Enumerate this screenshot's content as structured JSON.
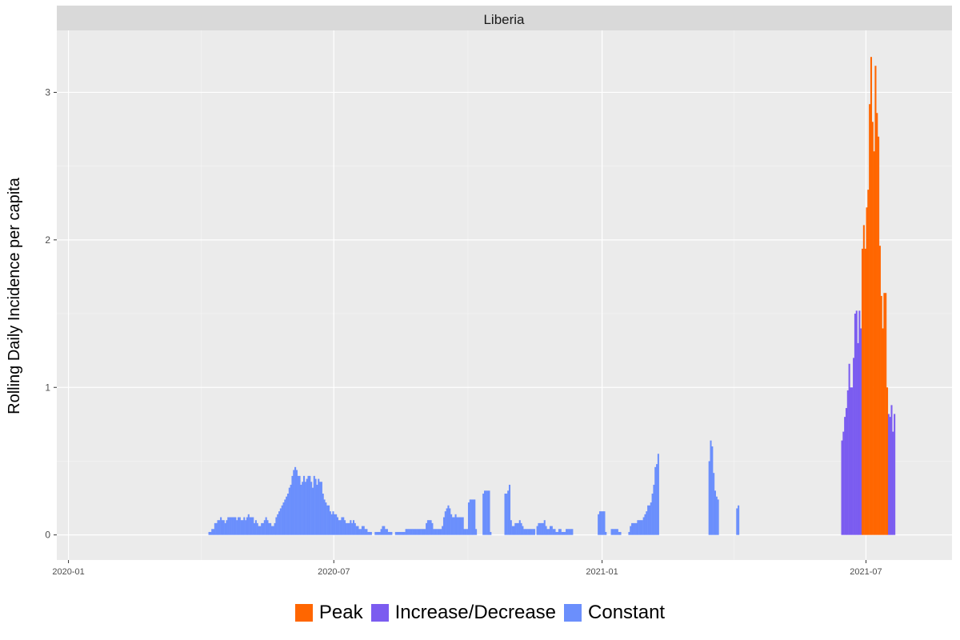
{
  "chart_data": {
    "type": "bar",
    "facet_label": "Liberia",
    "ylabel": "Rolling Daily Incidence per capita",
    "xlabel": "",
    "x_ticks": [
      "2020-01",
      "2020-07",
      "2021-01",
      "2021-07"
    ],
    "y_ticks": [
      "0",
      "1",
      "2",
      "3"
    ],
    "xlim": [
      "2019-12-24",
      "2021-08-29"
    ],
    "ylim": [
      -0.17,
      3.42
    ],
    "grid": true,
    "legend_position": "bottom",
    "legend": [
      {
        "key": "peak",
        "name": "Peak",
        "color": "#ff6600"
      },
      {
        "key": "incdec",
        "name": "Increase/Decrease",
        "color": "#7b5cf0"
      },
      {
        "key": "constant",
        "name": "Constant",
        "color": "#6b8ffc"
      }
    ],
    "series": [
      {
        "name": "Constant",
        "key": "constant",
        "color": "#6b8ffc",
        "start": "2020-04-06",
        "values": [
          0.02,
          0.02,
          0.04,
          0.04,
          0.08,
          0.08,
          0.1,
          0.1,
          0.12,
          0.1,
          0.1,
          0.08,
          0.1,
          0.12,
          0.12,
          0.12,
          0.12,
          0.12,
          0.12,
          0.1,
          0.12,
          0.12,
          0.1,
          0.1,
          0.12,
          0.1,
          0.12,
          0.14,
          0.12,
          0.12,
          0.12,
          0.08,
          0.1,
          0.08,
          0.06,
          0.06,
          0.08,
          0.08,
          0.1,
          0.12,
          0.1,
          0.08,
          0.08,
          0.06,
          0.06,
          0.08,
          0.12,
          0.14,
          0.16,
          0.18,
          0.2,
          0.22,
          0.24,
          0.26,
          0.28,
          0.32,
          0.34,
          0.4,
          0.44,
          0.46,
          0.44,
          0.4,
          0.4,
          0.34,
          0.36,
          0.4,
          0.36,
          0.38,
          0.4,
          0.4,
          0.36,
          0.32,
          0.4,
          0.38,
          0.34,
          0.38,
          0.36,
          0.36,
          0.28,
          0.24,
          0.22,
          0.2,
          0.2,
          0.16,
          0.14,
          0.16,
          0.14,
          0.14,
          0.12,
          0.1,
          0.1,
          0.12,
          0.12,
          0.1,
          0.08,
          0.08,
          0.08,
          0.1,
          0.08,
          0.1,
          0.08,
          0.06,
          0.06,
          0.04,
          0.04,
          0.06,
          0.06,
          0.04,
          0.04,
          0.02,
          0.02,
          0.02,
          0.0,
          0.0,
          0.02,
          0.02,
          0.02,
          0.02,
          0.04,
          0.06,
          0.06,
          0.04,
          0.04,
          0.02,
          0.02,
          0.02,
          0.0,
          0.0,
          0.02,
          0.02,
          0.02,
          0.02,
          0.02,
          0.02,
          0.02,
          0.04,
          0.04,
          0.04,
          0.04,
          0.04,
          0.04,
          0.04,
          0.04,
          0.04,
          0.04,
          0.04,
          0.04,
          0.04,
          0.04,
          0.08,
          0.1,
          0.1,
          0.1,
          0.08,
          0.04,
          0.04,
          0.04,
          0.04,
          0.04,
          0.04,
          0.06,
          0.12,
          0.16,
          0.18,
          0.2,
          0.18,
          0.14,
          0.12,
          0.12,
          0.14,
          0.12,
          0.12,
          0.12,
          0.12,
          0.12,
          0.04,
          0.04,
          0.04,
          0.22,
          0.24,
          0.24,
          0.24,
          0.24,
          0.04,
          0.0,
          0.0,
          0.0,
          0.0,
          0.28,
          0.3,
          0.3,
          0.3,
          0.3,
          0.02,
          0.0,
          0.0,
          0.0,
          0.0,
          0.0,
          0.0,
          0.0,
          0.0,
          0.0,
          0.28,
          0.28,
          0.3,
          0.34,
          0.1,
          0.06,
          0.06,
          0.08,
          0.08,
          0.08,
          0.1,
          0.08,
          0.06,
          0.04,
          0.04,
          0.04,
          0.04,
          0.04,
          0.04,
          0.04,
          0.04,
          0.0,
          0.06,
          0.08,
          0.08,
          0.08,
          0.08,
          0.1,
          0.06,
          0.04,
          0.04,
          0.06,
          0.06,
          0.04,
          0.04,
          0.02,
          0.02,
          0.04,
          0.04,
          0.02,
          0.02,
          0.02,
          0.04,
          0.04,
          0.04,
          0.04,
          0.04,
          0.0,
          0.0,
          0.0,
          0.0,
          0.0,
          0.0,
          0.0,
          0.0,
          0.0,
          0.0,
          0.0,
          0.0,
          0.0,
          0.0,
          0.0,
          0.0,
          0.0,
          0.14,
          0.16,
          0.16,
          0.16,
          0.16,
          0.02,
          0.0,
          0.0,
          0.0,
          0.04,
          0.04,
          0.04,
          0.04,
          0.04,
          0.02,
          0.02,
          0.0,
          0.0,
          0.0,
          0.0,
          0.0,
          0.02,
          0.06,
          0.08,
          0.08,
          0.08,
          0.08,
          0.1,
          0.1,
          0.1,
          0.1,
          0.12,
          0.14,
          0.16,
          0.2,
          0.2,
          0.22,
          0.28,
          0.34,
          0.46,
          0.48,
          0.55,
          0,
          0,
          0,
          0,
          0,
          0,
          0,
          0,
          0,
          0,
          0,
          0,
          0,
          0,
          0,
          0,
          0,
          0,
          0,
          0,
          0,
          0,
          0,
          0,
          0,
          0,
          0,
          0,
          0,
          0,
          0,
          0,
          0,
          0,
          0.5,
          0.64,
          0.6,
          0.42,
          0.3,
          0.26,
          0.24,
          0,
          0,
          0,
          0,
          0,
          0,
          0,
          0,
          0,
          0,
          0,
          0,
          0.18,
          0.2
        ]
      },
      {
        "name": "Increase/Decrease",
        "key": "incdec",
        "color": "#7b5cf0",
        "start": "2021-06-14",
        "values": [
          0.64,
          0.7,
          0.8,
          0.86,
          0.98,
          1.16,
          1.0,
          1.0,
          1.2,
          1.5,
          1.52,
          1.3,
          1.52,
          1.4,
          0,
          0,
          0,
          0,
          0,
          0,
          0,
          0,
          0,
          0,
          0,
          0,
          0,
          0,
          0,
          0,
          0,
          0,
          0.82,
          0.8,
          0.88,
          0.7,
          0.82
        ]
      },
      {
        "name": "Peak",
        "key": "peak",
        "color": "#ff6600",
        "start": "2021-06-28",
        "values": [
          1.94,
          2.1,
          1.94,
          2.22,
          2.34,
          2.92,
          3.24,
          2.8,
          2.6,
          3.18,
          2.86,
          2.7,
          1.96,
          1.62,
          1.4,
          1.64,
          1.64,
          1.0
        ]
      }
    ]
  }
}
